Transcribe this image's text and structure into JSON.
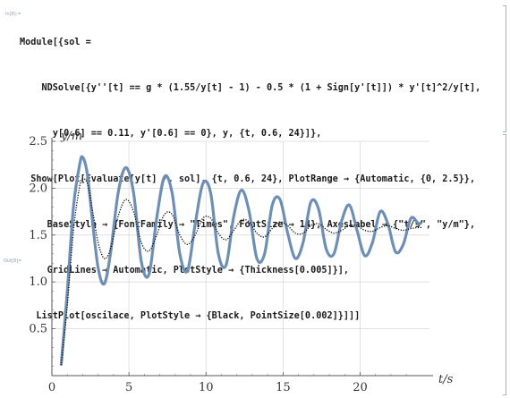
{
  "notebook": {
    "in_label": "In[8]:=",
    "out_label": "Out[8]=",
    "code_lines": [
      "Module[{sol =",
      "    NDSolve[{y''[t] == g * (1.55/y[t] - 1) - 0.5 * (1 + Sign[y'[t]]) * y'[t]^2/y[t],",
      "      y[0.6] == 0.11, y'[0.6] == 0}, y, {t, 0.6, 24}]},",
      "  Show[Plot[Evaluate[y[t] /. sol], {t, 0.6, 24}, PlotRange → {Automatic, {0, 2.5}},",
      "     BaseStyle → {FontFamily → \"Times\", FontSize → 14}, AxesLabel → {\"t/s\", \"y/m\"},",
      "     GridLines → Automatic, PlotStyle → {Thickness[0.005]}],",
      "   ListPlot[oscilace, PlotStyle → {Black, PointSize[0.002]}]]]"
    ]
  },
  "chart_data": {
    "type": "line",
    "xlabel": "t/s",
    "ylabel": "y/m",
    "xlim": [
      0,
      24.5
    ],
    "ylim": [
      0,
      2.5
    ],
    "x_ticks": [
      0,
      5,
      10,
      15,
      20
    ],
    "y_ticks": [
      0.5,
      1.0,
      1.5,
      2.0,
      2.5
    ],
    "y_tick_labels": [
      "0.5",
      "1.0",
      "1.5",
      "2.0",
      "2.5"
    ],
    "grid": true,
    "series": [
      {
        "style": "thick-line",
        "color": "#6e8fb5",
        "x": [
          0.6,
          1.0,
          1.4,
          1.8,
          2.0,
          2.3,
          2.6,
          3.0,
          3.4,
          3.8,
          4.3,
          4.8,
          5.3,
          5.8,
          6.3,
          6.8,
          7.3,
          7.8,
          8.3,
          8.8,
          9.3,
          9.8,
          10.3,
          10.8,
          11.3,
          11.8,
          12.3,
          12.8,
          13.3,
          13.8,
          14.3,
          14.8,
          15.3,
          15.8,
          16.3,
          16.8,
          17.3,
          17.8,
          18.3,
          18.8,
          19.3,
          19.8,
          20.3,
          20.8,
          21.3,
          21.8,
          22.3,
          22.8,
          23.3,
          23.8,
          24.0
        ],
        "y": [
          0.11,
          0.9,
          1.8,
          2.25,
          2.33,
          2.15,
          1.7,
          1.15,
          0.98,
          1.3,
          1.95,
          2.22,
          1.95,
          1.22,
          1.08,
          1.68,
          2.12,
          1.95,
          1.3,
          1.12,
          1.62,
          2.05,
          1.95,
          1.3,
          1.18,
          1.7,
          1.98,
          1.75,
          1.25,
          1.3,
          1.82,
          1.88,
          1.52,
          1.25,
          1.42,
          1.85,
          1.78,
          1.35,
          1.3,
          1.65,
          1.82,
          1.55,
          1.28,
          1.42,
          1.75,
          1.62,
          1.32,
          1.4,
          1.68,
          1.62,
          1.64
        ]
      },
      {
        "style": "dotted",
        "color": "#000000",
        "x": [
          0.6,
          1.0,
          1.4,
          1.8,
          2.0,
          2.3,
          2.6,
          3.0,
          3.4,
          3.8,
          4.3,
          4.8,
          5.3,
          5.8,
          6.3,
          6.8,
          7.3,
          7.8,
          8.3,
          8.8,
          9.3,
          9.8,
          10.3,
          10.8,
          11.3,
          11.8,
          12.3,
          12.8,
          13.3,
          13.8,
          14.3,
          14.8,
          15.3,
          15.8,
          16.3,
          16.8,
          17.3,
          17.8,
          18.3,
          18.8,
          19.3,
          19.8,
          20.3,
          20.8,
          21.3,
          21.8,
          22.3,
          22.8,
          23.3,
          23.8,
          24.0
        ],
        "y": [
          0.11,
          0.75,
          1.55,
          2.02,
          2.1,
          2.05,
          1.8,
          1.42,
          1.25,
          1.35,
          1.7,
          1.88,
          1.75,
          1.42,
          1.33,
          1.5,
          1.72,
          1.72,
          1.5,
          1.4,
          1.5,
          1.68,
          1.68,
          1.52,
          1.45,
          1.55,
          1.66,
          1.64,
          1.52,
          1.48,
          1.57,
          1.64,
          1.6,
          1.52,
          1.52,
          1.6,
          1.62,
          1.56,
          1.52,
          1.55,
          1.6,
          1.6,
          1.55,
          1.54,
          1.58,
          1.6,
          1.57,
          1.55,
          1.57,
          1.58,
          1.58
        ]
      }
    ]
  }
}
